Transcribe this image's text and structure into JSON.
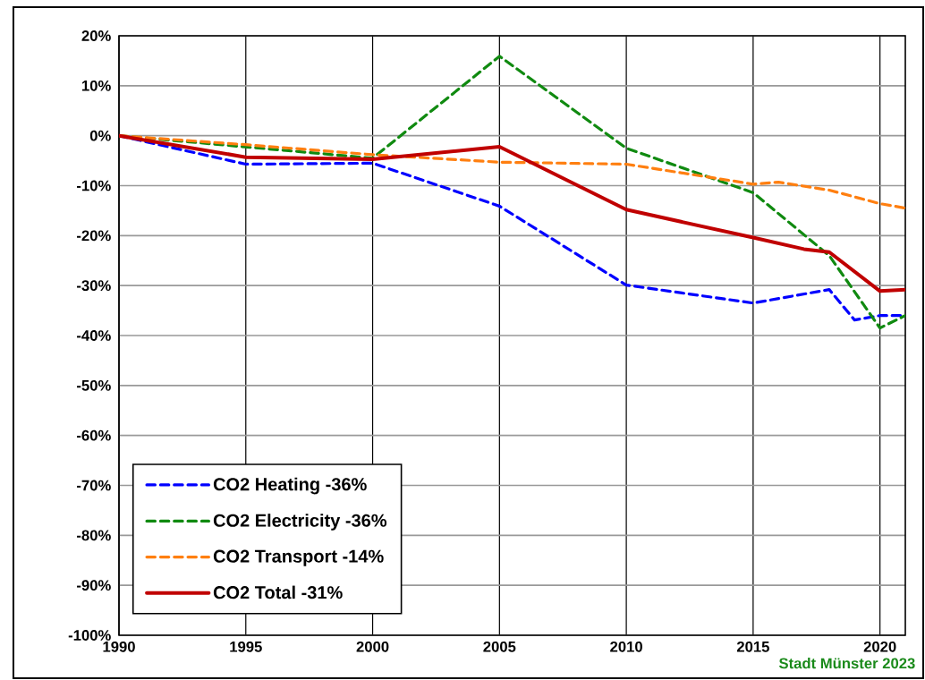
{
  "chart_data": {
    "type": "line",
    "xlim": [
      1990,
      2021
    ],
    "ylim": [
      -100,
      20
    ],
    "xticks": [
      1990,
      1995,
      2000,
      2005,
      2010,
      2015,
      2020
    ],
    "yticks": [
      {
        "value": -100,
        "label": "-100%"
      },
      {
        "value": -90,
        "label": "-90%"
      },
      {
        "value": -80,
        "label": "-80%"
      },
      {
        "value": -70,
        "label": "-70%"
      },
      {
        "value": -60,
        "label": "-60%"
      },
      {
        "value": -50,
        "label": "-50%"
      },
      {
        "value": -40,
        "label": "-40%"
      },
      {
        "value": -30,
        "label": "-30%"
      },
      {
        "value": -20,
        "label": "-20%"
      },
      {
        "value": -10,
        "label": "-10%"
      },
      {
        "value": 0,
        "label": "0%"
      },
      {
        "value": 10,
        "label": "10%"
      },
      {
        "value": 20,
        "label": "20%"
      }
    ],
    "grid": true,
    "legend": "bottom left",
    "marker": "none",
    "series": [
      {
        "name": "CO2 Heating -36%",
        "color": "#0000ff",
        "line_style": "dashed",
        "x": [
          1990,
          1995,
          2000,
          2005,
          2010,
          2015,
          2018,
          2019,
          2020,
          2021
        ],
        "values": [
          0,
          -5.7,
          -5.5,
          -14.1,
          -29.9,
          -33.5,
          -30.8,
          -36.9,
          -36,
          -36
        ]
      },
      {
        "name": "CO2 Electricity -36%",
        "color": "#108a10",
        "line_style": "dashed",
        "x": [
          1990,
          2000,
          2005,
          2010,
          2015,
          2018,
          2020,
          2021
        ],
        "values": [
          0,
          -4.5,
          15.9,
          -2.5,
          -11.4,
          -24,
          -38.5,
          -36
        ]
      },
      {
        "name": "CO2 Transport -14%",
        "color": "#ff7f10",
        "line_style": "dashed",
        "x": [
          1990,
          1995,
          2000,
          2005,
          2010,
          2015,
          2016,
          2018,
          2020,
          2021
        ],
        "values": [
          0,
          -1.8,
          -3.8,
          -5.3,
          -5.7,
          -9.7,
          -9.3,
          -10.9,
          -13.6,
          -14.5
        ]
      },
      {
        "name": "CO2 Total -31%",
        "color": "#c00000",
        "line_style": "solid",
        "x": [
          1990,
          1995,
          2000,
          2005,
          2010,
          2015,
          2017,
          2018,
          2020,
          2021
        ],
        "values": [
          0,
          -4.3,
          -4.7,
          -2.2,
          -14.8,
          -20.4,
          -22.7,
          -23.3,
          -31.1,
          -30.8
        ]
      }
    ],
    "annotations": [
      "Stadt Münster 2023"
    ]
  }
}
